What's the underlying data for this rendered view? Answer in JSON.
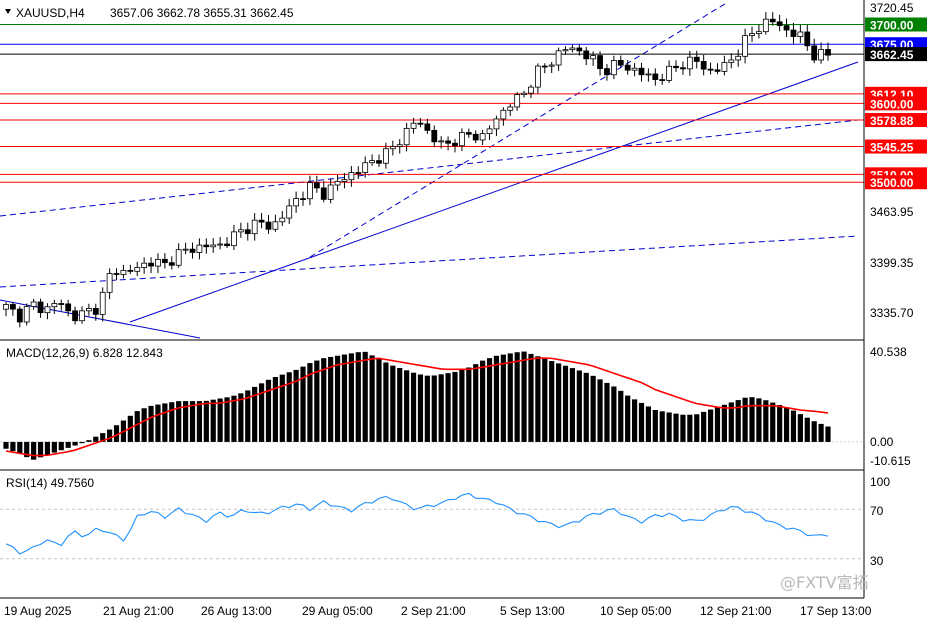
{
  "header": {
    "symbol": "XAUUSD,H4",
    "ohlc": "3657.06 3662.78 3655.31 3662.45"
  },
  "price_axis": {
    "ticks": [
      "3720.45",
      "3463.95",
      "3399.35",
      "3335.70"
    ],
    "range": [
      3305,
      3726
    ]
  },
  "levels": [
    {
      "label": "3700.00",
      "value": 3700.0,
      "color": "#008000"
    },
    {
      "label": "3675.00",
      "value": 3675.0,
      "color": "#0000ff"
    },
    {
      "label": "3612.10",
      "value": 3612.1,
      "color": "#ff0000"
    },
    {
      "label": "3600.00",
      "value": 3600.0,
      "color": "#ff0000"
    },
    {
      "label": "3578.88",
      "value": 3578.88,
      "color": "#ff0000"
    },
    {
      "label": "3545.25",
      "value": 3545.25,
      "color": "#ff0000"
    },
    {
      "label": "3510.00",
      "value": 3510.0,
      "color": "#ff0000"
    },
    {
      "label": "3500.00",
      "value": 3500.0,
      "color": "#ff0000"
    }
  ],
  "current_price": {
    "label": "3662.45",
    "value": 3662.45
  },
  "macd": {
    "title": "MACD(12,26,9) 6.828 12.843",
    "ticks": [
      "40.538",
      "0.00",
      "-10.615"
    ],
    "range": [
      -10.615,
      40.538
    ]
  },
  "rsi": {
    "title": "RSI(14) 49.7560",
    "ticks": [
      "100",
      "70",
      "30"
    ],
    "levels": [
      70,
      30
    ]
  },
  "time_axis": {
    "labels": [
      "19 Aug 2025",
      "21 Aug 21:00",
      "26 Aug 13:00",
      "29 Aug 05:00",
      "2 Sep 21:00",
      "5 Sep 13:00",
      "10 Sep 05:00",
      "12 Sep 21:00",
      "17 Sep 13:00"
    ]
  },
  "watermark": "@FXTV富拓",
  "colors": {
    "bull_body": "#ffffff",
    "bear_body": "#000000",
    "candle_line": "#000000",
    "trendline": "#0000cd",
    "macd_hist": "#000000",
    "macd_signal": "#ff0000",
    "rsi_line": "#1e90ff",
    "grid": "#a0a0a0"
  },
  "chart_data": [
    {
      "type": "candlestick",
      "title": "XAUUSD,H4",
      "keypoints_close": [
        3342,
        3330,
        3345,
        3338,
        3350,
        3328,
        3335,
        3342,
        3390,
        3385,
        3392,
        3400,
        3395,
        3410,
        3415,
        3420,
        3418,
        3430,
        3440,
        3450,
        3442,
        3460,
        3480,
        3495,
        3485,
        3500,
        3510,
        3520,
        3530,
        3540,
        3560,
        3580,
        3560,
        3545,
        3555,
        3560,
        3558,
        3580,
        3600,
        3610,
        3640,
        3650,
        3670,
        3668,
        3660,
        3640,
        3650,
        3645,
        3638,
        3630,
        3640,
        3650,
        3655,
        3640,
        3645,
        3660,
        3685,
        3700,
        3705,
        3690,
        3685,
        3660,
        3662
      ],
      "ylim": [
        3305,
        3726
      ]
    },
    {
      "type": "bar",
      "title": "MACD(12,26,9) 6.828 12.843",
      "hist_keypoints": [
        -3,
        -5,
        -8,
        -6,
        -4,
        -2,
        0,
        3,
        6,
        10,
        14,
        16,
        17,
        18,
        18,
        18,
        19,
        20,
        22,
        25,
        28,
        30,
        32,
        35,
        37,
        38,
        39,
        40,
        37,
        34,
        32,
        30,
        29,
        30,
        31,
        33,
        36,
        38,
        39,
        40,
        38,
        36,
        34,
        32,
        30,
        27,
        24,
        20,
        17,
        14,
        13,
        12,
        12,
        14,
        16,
        18,
        20,
        19,
        17,
        15,
        12,
        9,
        6.8
      ],
      "signal_keypoints": [
        -4,
        -5,
        -6,
        -6,
        -5,
        -4,
        -2,
        0,
        2,
        5,
        8,
        11,
        13,
        15,
        16,
        17,
        17,
        18,
        19,
        21,
        23,
        25,
        27,
        30,
        32,
        34,
        35,
        36,
        37,
        36,
        35,
        34,
        33,
        32,
        32,
        32,
        33,
        34,
        35,
        36,
        37,
        37,
        36,
        35,
        34,
        32,
        30,
        28,
        26,
        23,
        21,
        19,
        17,
        16,
        15,
        15,
        16,
        16,
        16,
        15,
        14,
        13.5,
        12.8
      ],
      "ylim": [
        -10.615,
        40.538
      ]
    },
    {
      "type": "line",
      "title": "RSI(14) 49.7560",
      "keypoints": [
        42,
        35,
        38,
        46,
        40,
        52,
        48,
        55,
        50,
        45,
        66,
        68,
        64,
        70,
        66,
        60,
        67,
        64,
        70,
        66,
        68,
        72,
        74,
        70,
        76,
        72,
        69,
        74,
        78,
        80,
        74,
        70,
        73,
        75,
        80,
        82,
        78,
        76,
        70,
        66,
        62,
        58,
        56,
        60,
        65,
        68,
        70,
        63,
        60,
        65,
        66,
        62,
        60,
        64,
        70,
        72,
        68,
        64,
        58,
        55,
        52,
        48,
        49.756
      ],
      "ylim": [
        0,
        100
      ]
    }
  ]
}
